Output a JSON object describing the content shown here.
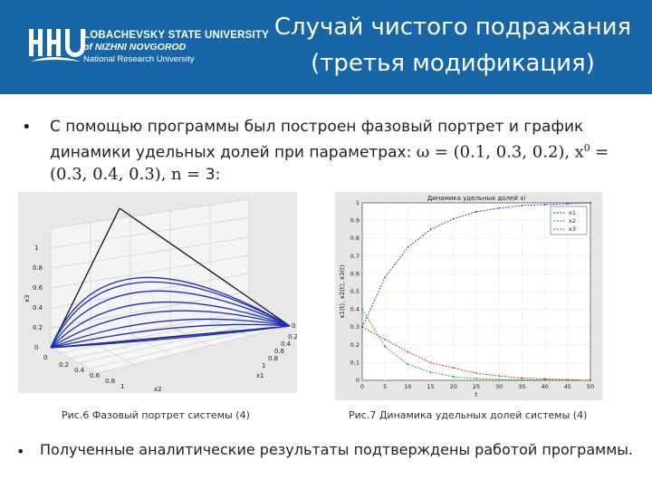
{
  "header": {
    "university_line1": "LOBACHEVSKY STATE UNIVERSITY",
    "university_line2": "of NIZHNI NOVGOROD",
    "university_line3": "National Research University",
    "title_line1": "Случай чистого подражания",
    "title_line2": "(третья модификация)",
    "background_color": "#1766a8"
  },
  "body": {
    "bullet_text": "С помощью программы был построен фазовый портрет и график динамики удельных долей при параметрах:",
    "params": {
      "omega_sym": "ω",
      "omega_val": "(0.1, 0.3, 0.2),",
      "x0_sym": "x",
      "x0_sup": "0",
      "x0_val": "(0.3,  0.4, 0.3),",
      "n_sym": "n",
      "n_val": "3:"
    },
    "bullet2_text": "Полученные аналитические результаты подтверждены работой программы."
  },
  "figure_left": {
    "caption": "Рис.6 Фазовый портрет системы (4)",
    "z_ticks": [
      "1",
      "0.8",
      "0.6",
      "0.4",
      "0.2",
      "0"
    ],
    "x_ticks": [
      "0",
      "0.2",
      "0.4",
      "0.6",
      "0.8",
      "1"
    ],
    "y_ticks": [
      "0",
      "0.2",
      "0.4",
      "0.6",
      "0.8",
      "1"
    ],
    "zlabel": "x3",
    "xlabel": "x1",
    "ylabel": "x2"
  },
  "figure_right": {
    "caption": "Рис.7 Динамика удельных долей системы (4)",
    "chart_data": {
      "type": "line",
      "title": "Динамика удельных долей xi",
      "xlabel": "t",
      "ylabel": "x1(t), x2(t), x3(t)",
      "xlim": [
        0,
        50
      ],
      "ylim": [
        0,
        1
      ],
      "xticks": [
        "0",
        "5",
        "10",
        "15",
        "20",
        "25",
        "30",
        "35",
        "40",
        "45",
        "50"
      ],
      "yticks": [
        "0",
        "0.1",
        "0.2",
        "0.3",
        "0.4",
        "0.5",
        "0.6",
        "0.7",
        "0.8",
        "0.9",
        "1"
      ],
      "grid": true,
      "legend_position": "top-right",
      "x": [
        0,
        5,
        10,
        15,
        20,
        25,
        30,
        35,
        40,
        45,
        50
      ],
      "series": [
        {
          "name": "x1",
          "color": "#2233cc",
          "values": [
            0.3,
            0.58,
            0.75,
            0.85,
            0.91,
            0.95,
            0.97,
            0.985,
            0.99,
            0.995,
            1.0
          ]
        },
        {
          "name": "x2",
          "color": "#22aa22",
          "values": [
            0.4,
            0.19,
            0.09,
            0.045,
            0.02,
            0.01,
            0.005,
            0.003,
            0.002,
            0.001,
            0.0
          ]
        },
        {
          "name": "x3",
          "color": "#dd2222",
          "values": [
            0.3,
            0.23,
            0.16,
            0.1,
            0.07,
            0.04,
            0.025,
            0.013,
            0.008,
            0.004,
            0.0
          ]
        }
      ]
    }
  }
}
